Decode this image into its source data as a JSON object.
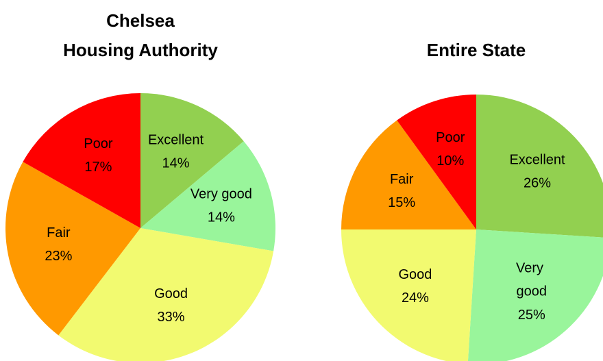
{
  "chart_data": [
    {
      "type": "pie",
      "title": [
        "Chelsea",
        "Housing Authority"
      ],
      "categories": [
        "Excellent",
        "Very good",
        "Good",
        "Fair",
        "Poor"
      ],
      "values": [
        14,
        14,
        33,
        23,
        17
      ],
      "value_labels": [
        "14%",
        "14%",
        "33%",
        "23%",
        "17%"
      ],
      "colors": [
        "#92d050",
        "#99f59b",
        "#f2fa70",
        "#ff9900",
        "#ff0000"
      ]
    },
    {
      "type": "pie",
      "title": [
        "Entire State"
      ],
      "categories": [
        "Excellent",
        "Very good",
        "Good",
        "Fair",
        "Poor"
      ],
      "values": [
        26,
        25,
        24,
        15,
        10
      ],
      "value_labels": [
        "26%",
        "25%",
        "24%",
        "15%",
        "10%"
      ],
      "colors": [
        "#92d050",
        "#99f59b",
        "#f2fa70",
        "#ff9900",
        "#ff0000"
      ]
    }
  ]
}
